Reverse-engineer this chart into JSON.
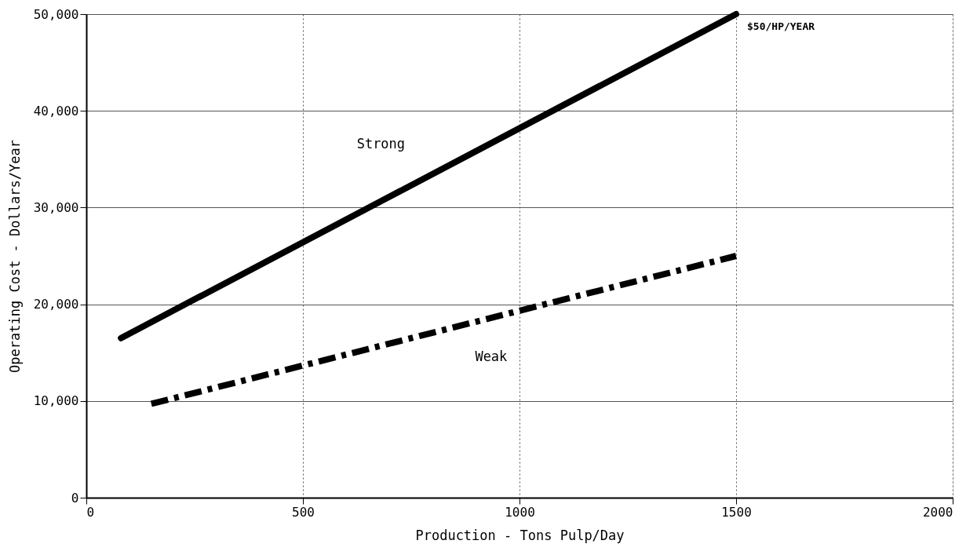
{
  "chart_data": {
    "type": "line",
    "xlabel": "Production - Tons Pulp/Day",
    "ylabel": "Operating Cost - Dollars/Year",
    "xlim": [
      0,
      2000
    ],
    "xticks": [
      0,
      500,
      1000,
      1500,
      2000
    ],
    "ylim": [
      0,
      50000
    ],
    "yticks": [
      {
        "value": 0,
        "label": "0"
      },
      {
        "value": 10000,
        "label": "10,000"
      },
      {
        "value": 20000,
        "label": "20,000"
      },
      {
        "value": 30000,
        "label": "30,000"
      },
      {
        "value": 40000,
        "label": "40,000"
      },
      {
        "value": 50000,
        "label": "50,000"
      }
    ],
    "grid": true,
    "legend": false,
    "marker": "none",
    "series": [
      {
        "name": "Strong",
        "color": "#000000",
        "line_style": "solid",
        "x": [
          80,
          1500
        ],
        "values": [
          16500,
          50000
        ]
      },
      {
        "name": "Weak",
        "color": "#000000",
        "line_style": "dashed",
        "x": [
          150,
          1500
        ],
        "values": [
          9700,
          25000
        ]
      }
    ],
    "annotations": [
      {
        "text": "$50/HP/YEAR",
        "x": 1500,
        "y": 50000
      }
    ]
  }
}
